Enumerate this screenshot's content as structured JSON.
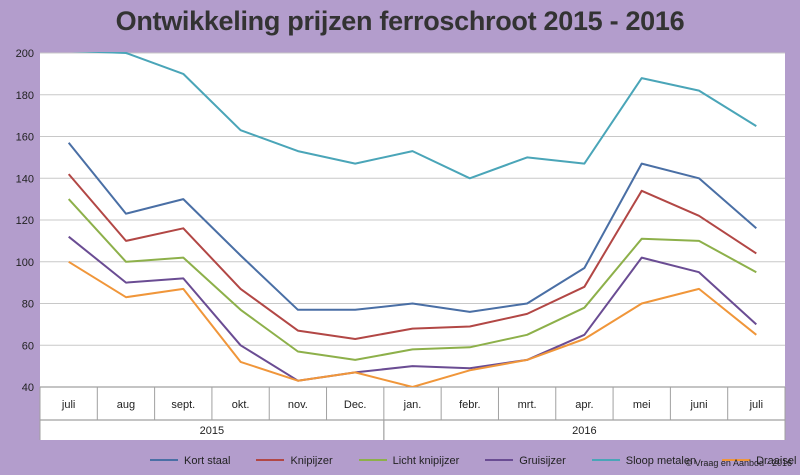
{
  "chart_data": {
    "type": "line",
    "title": "Ontwikkeling prijzen ferroschroot 2015 - 2016",
    "categories": [
      "juli",
      "aug",
      "sept.",
      "okt.",
      "nov.",
      "Dec.",
      "jan.",
      "febr.",
      "mrt.",
      "apr.",
      "mei",
      "juni",
      "juli"
    ],
    "category_groups": [
      {
        "label": "2015",
        "from": 0,
        "to": 5
      },
      {
        "label": "2016",
        "from": 6,
        "to": 12
      }
    ],
    "ylim": [
      40,
      200
    ],
    "yticks": [
      40,
      60,
      80,
      100,
      120,
      140,
      160,
      180,
      200
    ],
    "grid": true,
    "legend_position": "bottom",
    "series": [
      {
        "name": "Kort staal",
        "color": "#4a6fa5",
        "values": [
          157,
          123,
          130,
          103,
          77,
          77,
          80,
          76,
          80,
          97,
          147,
          140,
          116
        ]
      },
      {
        "name": "Knipijzer",
        "color": "#b24745",
        "values": [
          142,
          110,
          116,
          87,
          67,
          63,
          68,
          69,
          75,
          88,
          134,
          122,
          104
        ]
      },
      {
        "name": "Licht knipijzer",
        "color": "#8db04a",
        "values": [
          130,
          100,
          102,
          77,
          57,
          53,
          58,
          59,
          65,
          78,
          111,
          110,
          95
        ]
      },
      {
        "name": "Gruisijzer",
        "color": "#6a4c93",
        "values": [
          112,
          90,
          92,
          60,
          43,
          47,
          50,
          49,
          53,
          65,
          102,
          95,
          70
        ]
      },
      {
        "name": "Sloop metalen",
        "color": "#4aa5b8",
        "values": [
          201,
          200,
          190,
          163,
          153,
          147,
          153,
          140,
          150,
          147,
          188,
          182,
          165
        ]
      },
      {
        "name": "Draaisel",
        "color": "#f0963a",
        "values": [
          100,
          83,
          87,
          52,
          43,
          47,
          40,
          48,
          53,
          63,
          80,
          87,
          65
        ]
      }
    ]
  },
  "copyright": "© Vraag en Aanbod - 2016"
}
